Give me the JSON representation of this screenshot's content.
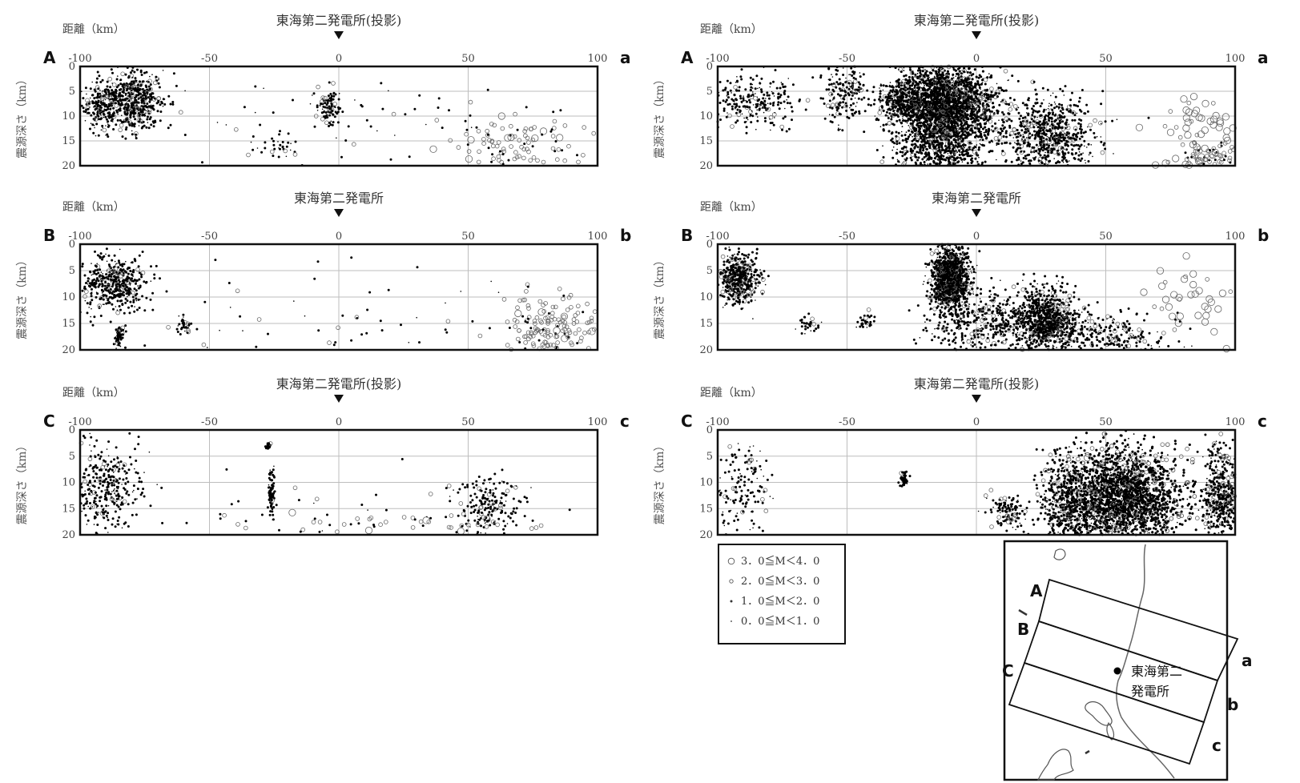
{
  "labels": {
    "distance": "距離（km）",
    "depth": "震源深さ（km）",
    "plant_proj": "東海第二発電所(投影)",
    "plant": "東海第二発電所"
  },
  "colors": {
    "ink": "#111111",
    "grid": "#bdbdbd",
    "point": "#000000",
    "open": "#666666"
  },
  "chart_data": [
    {
      "id": "left-A",
      "type": "scatter",
      "end_left": "A",
      "end_right": "a",
      "title_key": "plant_proj",
      "xlim": [
        -100,
        100
      ],
      "ylim": [
        0,
        20
      ],
      "y_inverted": true,
      "grid": true,
      "xticks": [
        "-100",
        "-50",
        "0",
        "50",
        "100"
      ],
      "yticks": [
        "0",
        "5",
        "10",
        "15",
        "20"
      ],
      "clusters": [
        {
          "x": -80,
          "y": 7,
          "sx": 6,
          "sy": 2.8,
          "n": 550,
          "m": 1
        },
        {
          "x": -92,
          "y": 8,
          "sx": 3,
          "sy": 2.5,
          "n": 180,
          "m": 1
        },
        {
          "x": -4,
          "y": 8,
          "sx": 2.5,
          "sy": 2,
          "n": 90,
          "m": 1
        },
        {
          "x": -25,
          "y": 16,
          "sx": 4,
          "sy": 1.5,
          "n": 30,
          "m": 1
        },
        {
          "x": 70,
          "y": 16,
          "sx": 15,
          "sy": 3,
          "n": 120,
          "m": 2
        },
        {
          "x": 0,
          "y": 12,
          "sx": 50,
          "sy": 5,
          "n": 70,
          "m": 1
        }
      ]
    },
    {
      "id": "left-B",
      "type": "scatter",
      "end_left": "B",
      "end_right": "b",
      "title_key": "plant",
      "xlim": [
        -100,
        100
      ],
      "ylim": [
        0,
        20
      ],
      "y_inverted": true,
      "grid": true,
      "xticks": [
        "-100",
        "-50",
        "0",
        "50",
        "100"
      ],
      "yticks": [
        "0",
        "5",
        "10",
        "15",
        "20"
      ],
      "clusters": [
        {
          "x": -87,
          "y": 7.5,
          "sx": 6,
          "sy": 2.5,
          "n": 450,
          "m": 1
        },
        {
          "x": -85,
          "y": 17.5,
          "sx": 1,
          "sy": 1.2,
          "n": 60,
          "m": 1
        },
        {
          "x": -60,
          "y": 15.5,
          "sx": 1.2,
          "sy": 0.8,
          "n": 35,
          "m": 1
        },
        {
          "x": 80,
          "y": 16,
          "sx": 9,
          "sy": 3,
          "n": 170,
          "m": 2
        },
        {
          "x": 0,
          "y": 13,
          "sx": 55,
          "sy": 5,
          "n": 60,
          "m": 1
        }
      ]
    },
    {
      "id": "left-C",
      "type": "scatter",
      "end_left": "C",
      "end_right": "c",
      "title_key": "plant_proj",
      "xlim": [
        -100,
        100
      ],
      "ylim": [
        0,
        20
      ],
      "y_inverted": true,
      "grid": true,
      "xticks": [
        "-100",
        "-50",
        "0",
        "50",
        "100"
      ],
      "yticks": [
        "0",
        "5",
        "10",
        "15",
        "20"
      ],
      "clusters": [
        {
          "x": -90,
          "y": 11,
          "sx": 7,
          "sy": 4,
          "n": 330,
          "m": 1
        },
        {
          "x": -26,
          "y": 12,
          "sx": 0.6,
          "sy": 2.2,
          "n": 80,
          "m": 1
        },
        {
          "x": -27,
          "y": 3,
          "sx": 0.5,
          "sy": 0.3,
          "n": 25,
          "m": 1
        },
        {
          "x": 58,
          "y": 14.5,
          "sx": 6,
          "sy": 3,
          "n": 180,
          "m": 1
        },
        {
          "x": 25,
          "y": 18,
          "sx": 30,
          "sy": 1.5,
          "n": 60,
          "m": 2
        },
        {
          "x": 0,
          "y": 15,
          "sx": 50,
          "sy": 4,
          "n": 50,
          "m": 1
        }
      ]
    },
    {
      "id": "right-A",
      "type": "scatter",
      "end_left": "A",
      "end_right": "a",
      "title_key": "plant_proj",
      "xlim": [
        -100,
        100
      ],
      "ylim": [
        0,
        20
      ],
      "y_inverted": true,
      "grid": true,
      "xticks": [
        "-100",
        "-50",
        "0",
        "50",
        "100"
      ],
      "yticks": [
        "0",
        "5",
        "10",
        "15",
        "20"
      ],
      "clusters": [
        {
          "x": -12,
          "y": 8,
          "sx": 9,
          "sy": 4.5,
          "n": 3400,
          "m": 1
        },
        {
          "x": -28,
          "y": 7,
          "sx": 5,
          "sy": 2,
          "n": 300,
          "m": 1
        },
        {
          "x": -85,
          "y": 7,
          "sx": 8,
          "sy": 2.5,
          "n": 250,
          "m": 1
        },
        {
          "x": -50,
          "y": 5,
          "sx": 5,
          "sy": 3,
          "n": 180,
          "m": 1
        },
        {
          "x": 28,
          "y": 14,
          "sx": 9,
          "sy": 4,
          "n": 750,
          "m": 1
        },
        {
          "x": -15,
          "y": 17,
          "sx": 8,
          "sy": 2.5,
          "n": 400,
          "m": 1
        },
        {
          "x": 90,
          "y": 12,
          "sx": 10,
          "sy": 5,
          "n": 50,
          "m": 3
        },
        {
          "x": 90,
          "y": 18,
          "sx": 6,
          "sy": 1.5,
          "n": 70,
          "m": 2
        }
      ]
    },
    {
      "id": "right-B",
      "type": "scatter",
      "end_left": "B",
      "end_right": "b",
      "title_key": "plant",
      "xlim": [
        -100,
        100
      ],
      "ylim": [
        0,
        20
      ],
      "y_inverted": true,
      "grid": true,
      "xticks": [
        "-100",
        "-50",
        "0",
        "50",
        "100"
      ],
      "yticks": [
        "0",
        "5",
        "10",
        "15",
        "20"
      ],
      "clusters": [
        {
          "x": -92,
          "y": 6.5,
          "sx": 4,
          "sy": 2.3,
          "n": 450,
          "m": 1
        },
        {
          "x": -10,
          "y": 6.5,
          "sx": 3.5,
          "sy": 3,
          "n": 1200,
          "m": 1
        },
        {
          "x": 27,
          "y": 14,
          "sx": 6,
          "sy": 3,
          "n": 800,
          "m": 1
        },
        {
          "x": 5,
          "y": 15,
          "sx": 12,
          "sy": 3,
          "n": 450,
          "m": 1
        },
        {
          "x": 50,
          "y": 17.5,
          "sx": 12,
          "sy": 2,
          "n": 300,
          "m": 1
        },
        {
          "x": 85,
          "y": 10,
          "sx": 10,
          "sy": 5,
          "n": 40,
          "m": 3
        },
        {
          "x": -65,
          "y": 15,
          "sx": 2,
          "sy": 1,
          "n": 30,
          "m": 1
        },
        {
          "x": -43,
          "y": 14.5,
          "sx": 1.5,
          "sy": 1,
          "n": 30,
          "m": 1
        }
      ]
    },
    {
      "id": "right-C",
      "type": "scatter",
      "end_left": "C",
      "end_right": "c",
      "title_key": "plant_proj",
      "xlim": [
        -100,
        100
      ],
      "ylim": [
        0,
        20
      ],
      "y_inverted": true,
      "grid": true,
      "xticks": [
        "-100",
        "-50",
        "0",
        "50",
        "100"
      ],
      "yticks": [
        "0",
        "5",
        "10",
        "15",
        "20"
      ],
      "clusters": [
        {
          "x": 57,
          "y": 13,
          "sx": 11,
          "sy": 4.5,
          "n": 4200,
          "m": 1
        },
        {
          "x": 35,
          "y": 14,
          "sx": 5,
          "sy": 5,
          "n": 500,
          "m": 1
        },
        {
          "x": 95,
          "y": 13,
          "sx": 4,
          "sy": 5,
          "n": 500,
          "m": 1
        },
        {
          "x": 12,
          "y": 15.5,
          "sx": 4,
          "sy": 1.5,
          "n": 120,
          "m": 1
        },
        {
          "x": -28,
          "y": 9.5,
          "sx": 0.7,
          "sy": 0.7,
          "n": 50,
          "m": 1
        },
        {
          "x": -90,
          "y": 10,
          "sx": 6,
          "sy": 5,
          "n": 150,
          "m": 1
        },
        {
          "x": 70,
          "y": 5,
          "sx": 15,
          "sy": 2,
          "n": 25,
          "m": 2
        }
      ]
    }
  ],
  "legend": {
    "items": [
      {
        "label": "3．0≦M＜4．0",
        "size": 3
      },
      {
        "label": "2．0≦M＜3．0",
        "size": 2
      },
      {
        "label": "1．0≦M＜2．0",
        "size": 1
      },
      {
        "label": "0．0≦M＜1．0",
        "size": 0
      }
    ]
  },
  "map": {
    "labels": {
      "A": "A",
      "B": "B",
      "C": "C",
      "a": "a",
      "b": "b",
      "c": "c"
    },
    "plant_line1": "東海第二",
    "plant_line2": "発電所"
  }
}
